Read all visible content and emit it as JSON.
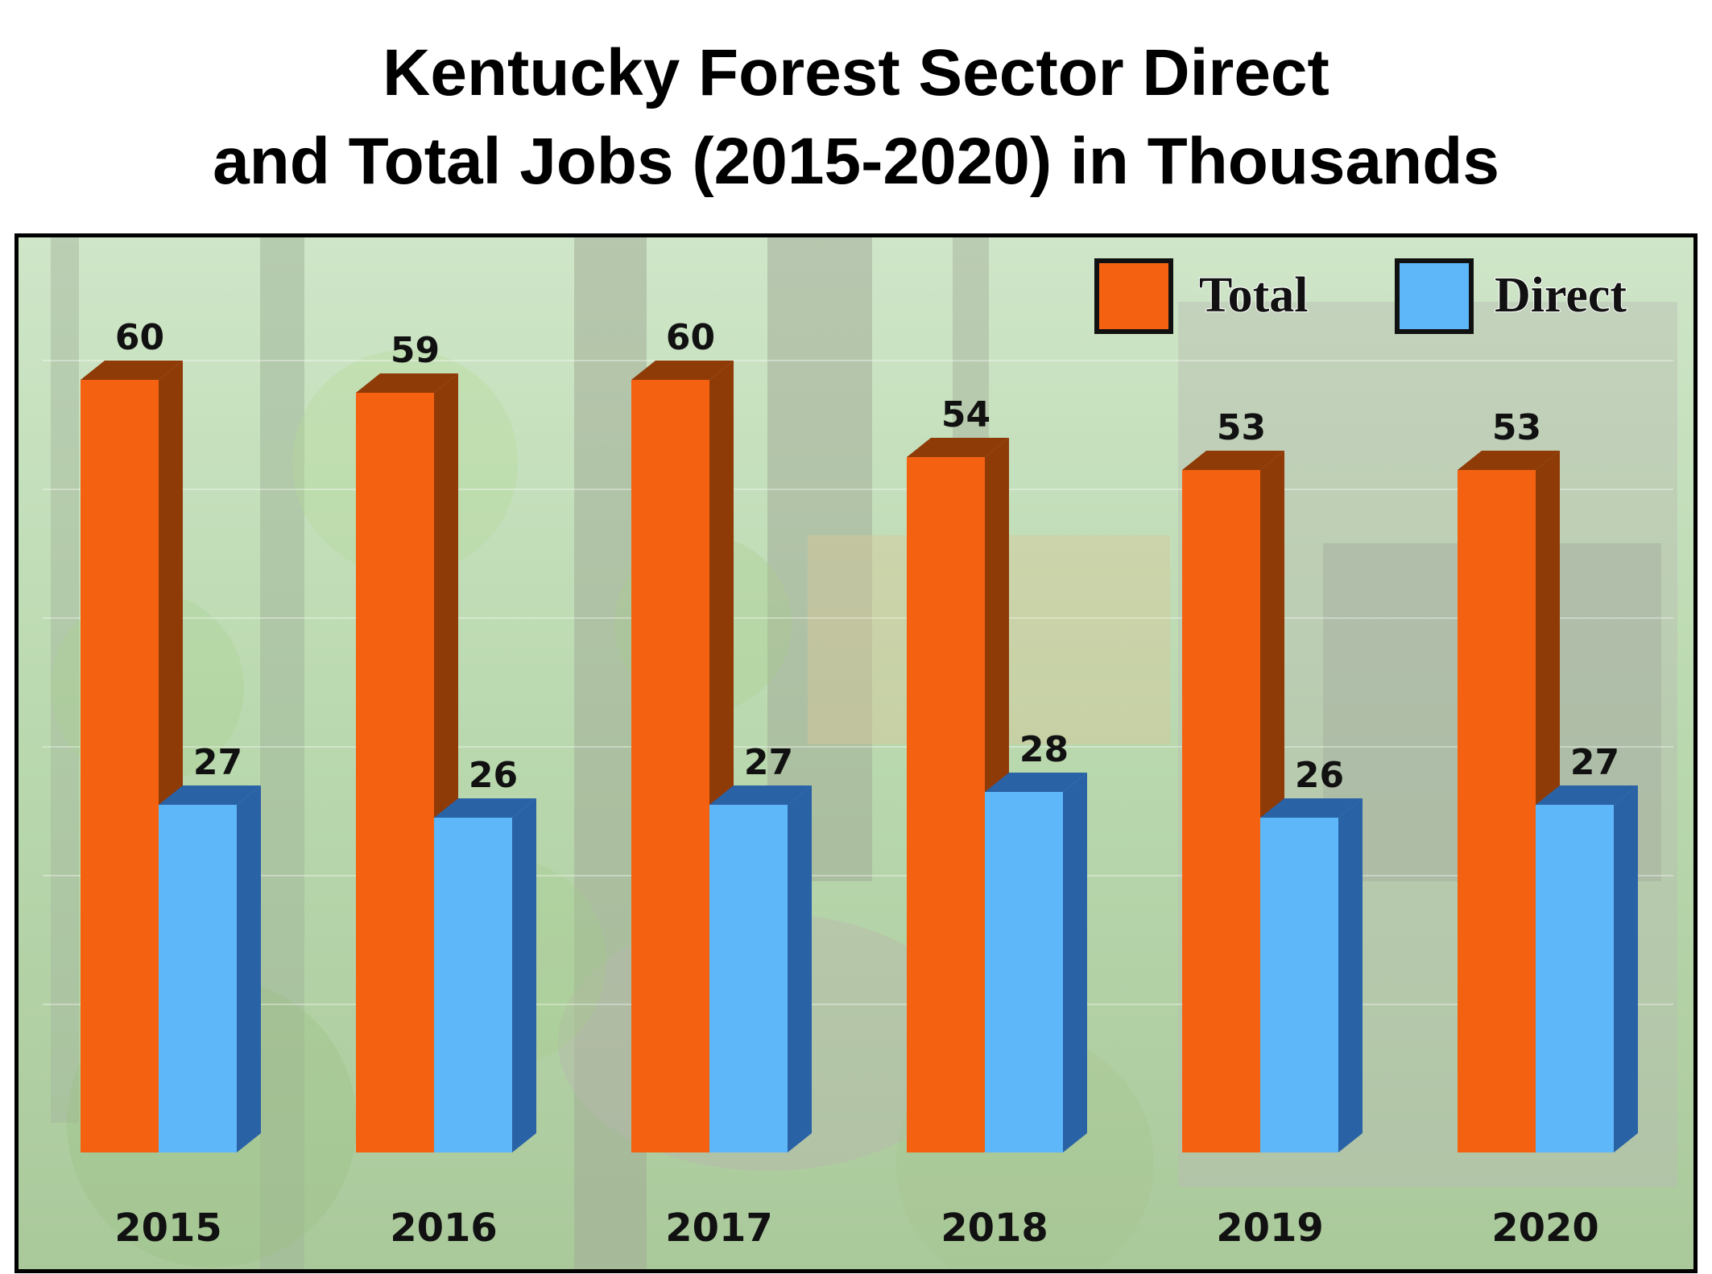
{
  "chart_data": {
    "type": "bar",
    "title": "Kentucky Forest Sector Direct and Total Jobs (2015-2020) in Thousands",
    "title_lines": [
      "Kentucky Forest Sector Direct",
      "and Total Jobs (2015-2020) in Thousands"
    ],
    "categories": [
      "2015",
      "2016",
      "2017",
      "2018",
      "2019",
      "2020"
    ],
    "series": [
      {
        "name": "Total",
        "values": [
          60,
          59,
          60,
          54,
          53,
          53
        ],
        "color": "#f46211",
        "side_color": "#8e3b08"
      },
      {
        "name": "Direct",
        "values": [
          27,
          26,
          27,
          28,
          26,
          27
        ],
        "color": "#5eb7f9",
        "side_color": "#2a62a6"
      }
    ],
    "data_labels": {
      "Total": [
        "60",
        "59",
        "60",
        "54",
        "53",
        "53"
      ],
      "Direct": [
        "27",
        "26",
        "27",
        "28",
        "26",
        "27"
      ]
    },
    "ylim": [
      0,
      60
    ],
    "xlabel": "",
    "ylabel": "",
    "legend_position": "top-right",
    "grid": true,
    "background": "faded forest photo with logging machinery"
  }
}
